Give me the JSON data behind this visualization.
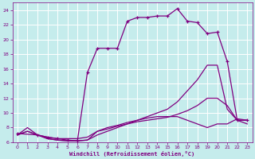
{
  "xlabel": "Windchill (Refroidissement éolien,°C)",
  "background_color": "#c5ecec",
  "grid_color": "#ffffff",
  "line_color": "#800080",
  "xlim": [
    -0.5,
    23.5
  ],
  "ylim": [
    6,
    25
  ],
  "xticks": [
    0,
    1,
    2,
    3,
    4,
    5,
    6,
    7,
    8,
    9,
    10,
    11,
    12,
    13,
    14,
    15,
    16,
    17,
    18,
    19,
    20,
    21,
    22,
    23
  ],
  "yticks": [
    6,
    8,
    10,
    12,
    14,
    16,
    18,
    20,
    22,
    24
  ],
  "line1_x": [
    0,
    1,
    2,
    3,
    4,
    5,
    6,
    7,
    8,
    9,
    10,
    11,
    12,
    13,
    14,
    15,
    16,
    17,
    18,
    19,
    20,
    21,
    22,
    23
  ],
  "line1_y": [
    7.0,
    7.5,
    7.0,
    6.5,
    6.3,
    6.2,
    6.2,
    6.3,
    7.5,
    7.8,
    8.2,
    8.5,
    8.8,
    9.0,
    9.2,
    9.4,
    9.8,
    10.3,
    11.0,
    12.0,
    12.0,
    11.0,
    9.0,
    9.0
  ],
  "line2_x": [
    0,
    1,
    2,
    3,
    4,
    5,
    6,
    7,
    8,
    9,
    10,
    11,
    12,
    13,
    14,
    15,
    16,
    17,
    18,
    19,
    20,
    21,
    22,
    23
  ],
  "line2_y": [
    7.0,
    7.5,
    7.0,
    6.5,
    6.3,
    6.2,
    6.2,
    6.3,
    7.0,
    7.5,
    8.0,
    8.5,
    9.0,
    9.5,
    10.0,
    10.5,
    11.5,
    13.0,
    14.5,
    16.5,
    16.5,
    10.5,
    9.0,
    8.5
  ],
  "line3_x": [
    0,
    2,
    3,
    4,
    5,
    6,
    7,
    8,
    9,
    10,
    11,
    12,
    13,
    14,
    15,
    16,
    17,
    18,
    19,
    20,
    21,
    22,
    23
  ],
  "line3_y": [
    7.2,
    7.0,
    6.7,
    6.5,
    6.3,
    6.2,
    15.5,
    18.8,
    18.8,
    18.8,
    22.5,
    23.0,
    23.0,
    23.2,
    23.2,
    24.2,
    22.5,
    22.3,
    20.8,
    21.0,
    17.0,
    9.0,
    9.0
  ],
  "line4_x": [
    0,
    1,
    2,
    3,
    4,
    5,
    6,
    7,
    8,
    9,
    10,
    11,
    12,
    13,
    14,
    15,
    16,
    17,
    18,
    19,
    20,
    21,
    22,
    23
  ],
  "line4_y": [
    7.0,
    8.0,
    7.0,
    6.7,
    6.5,
    6.5,
    6.5,
    6.7,
    7.5,
    8.0,
    8.3,
    8.7,
    9.0,
    9.3,
    9.5,
    9.5,
    9.5,
    9.0,
    8.5,
    8.0,
    8.5,
    8.5,
    9.2,
    9.0
  ]
}
